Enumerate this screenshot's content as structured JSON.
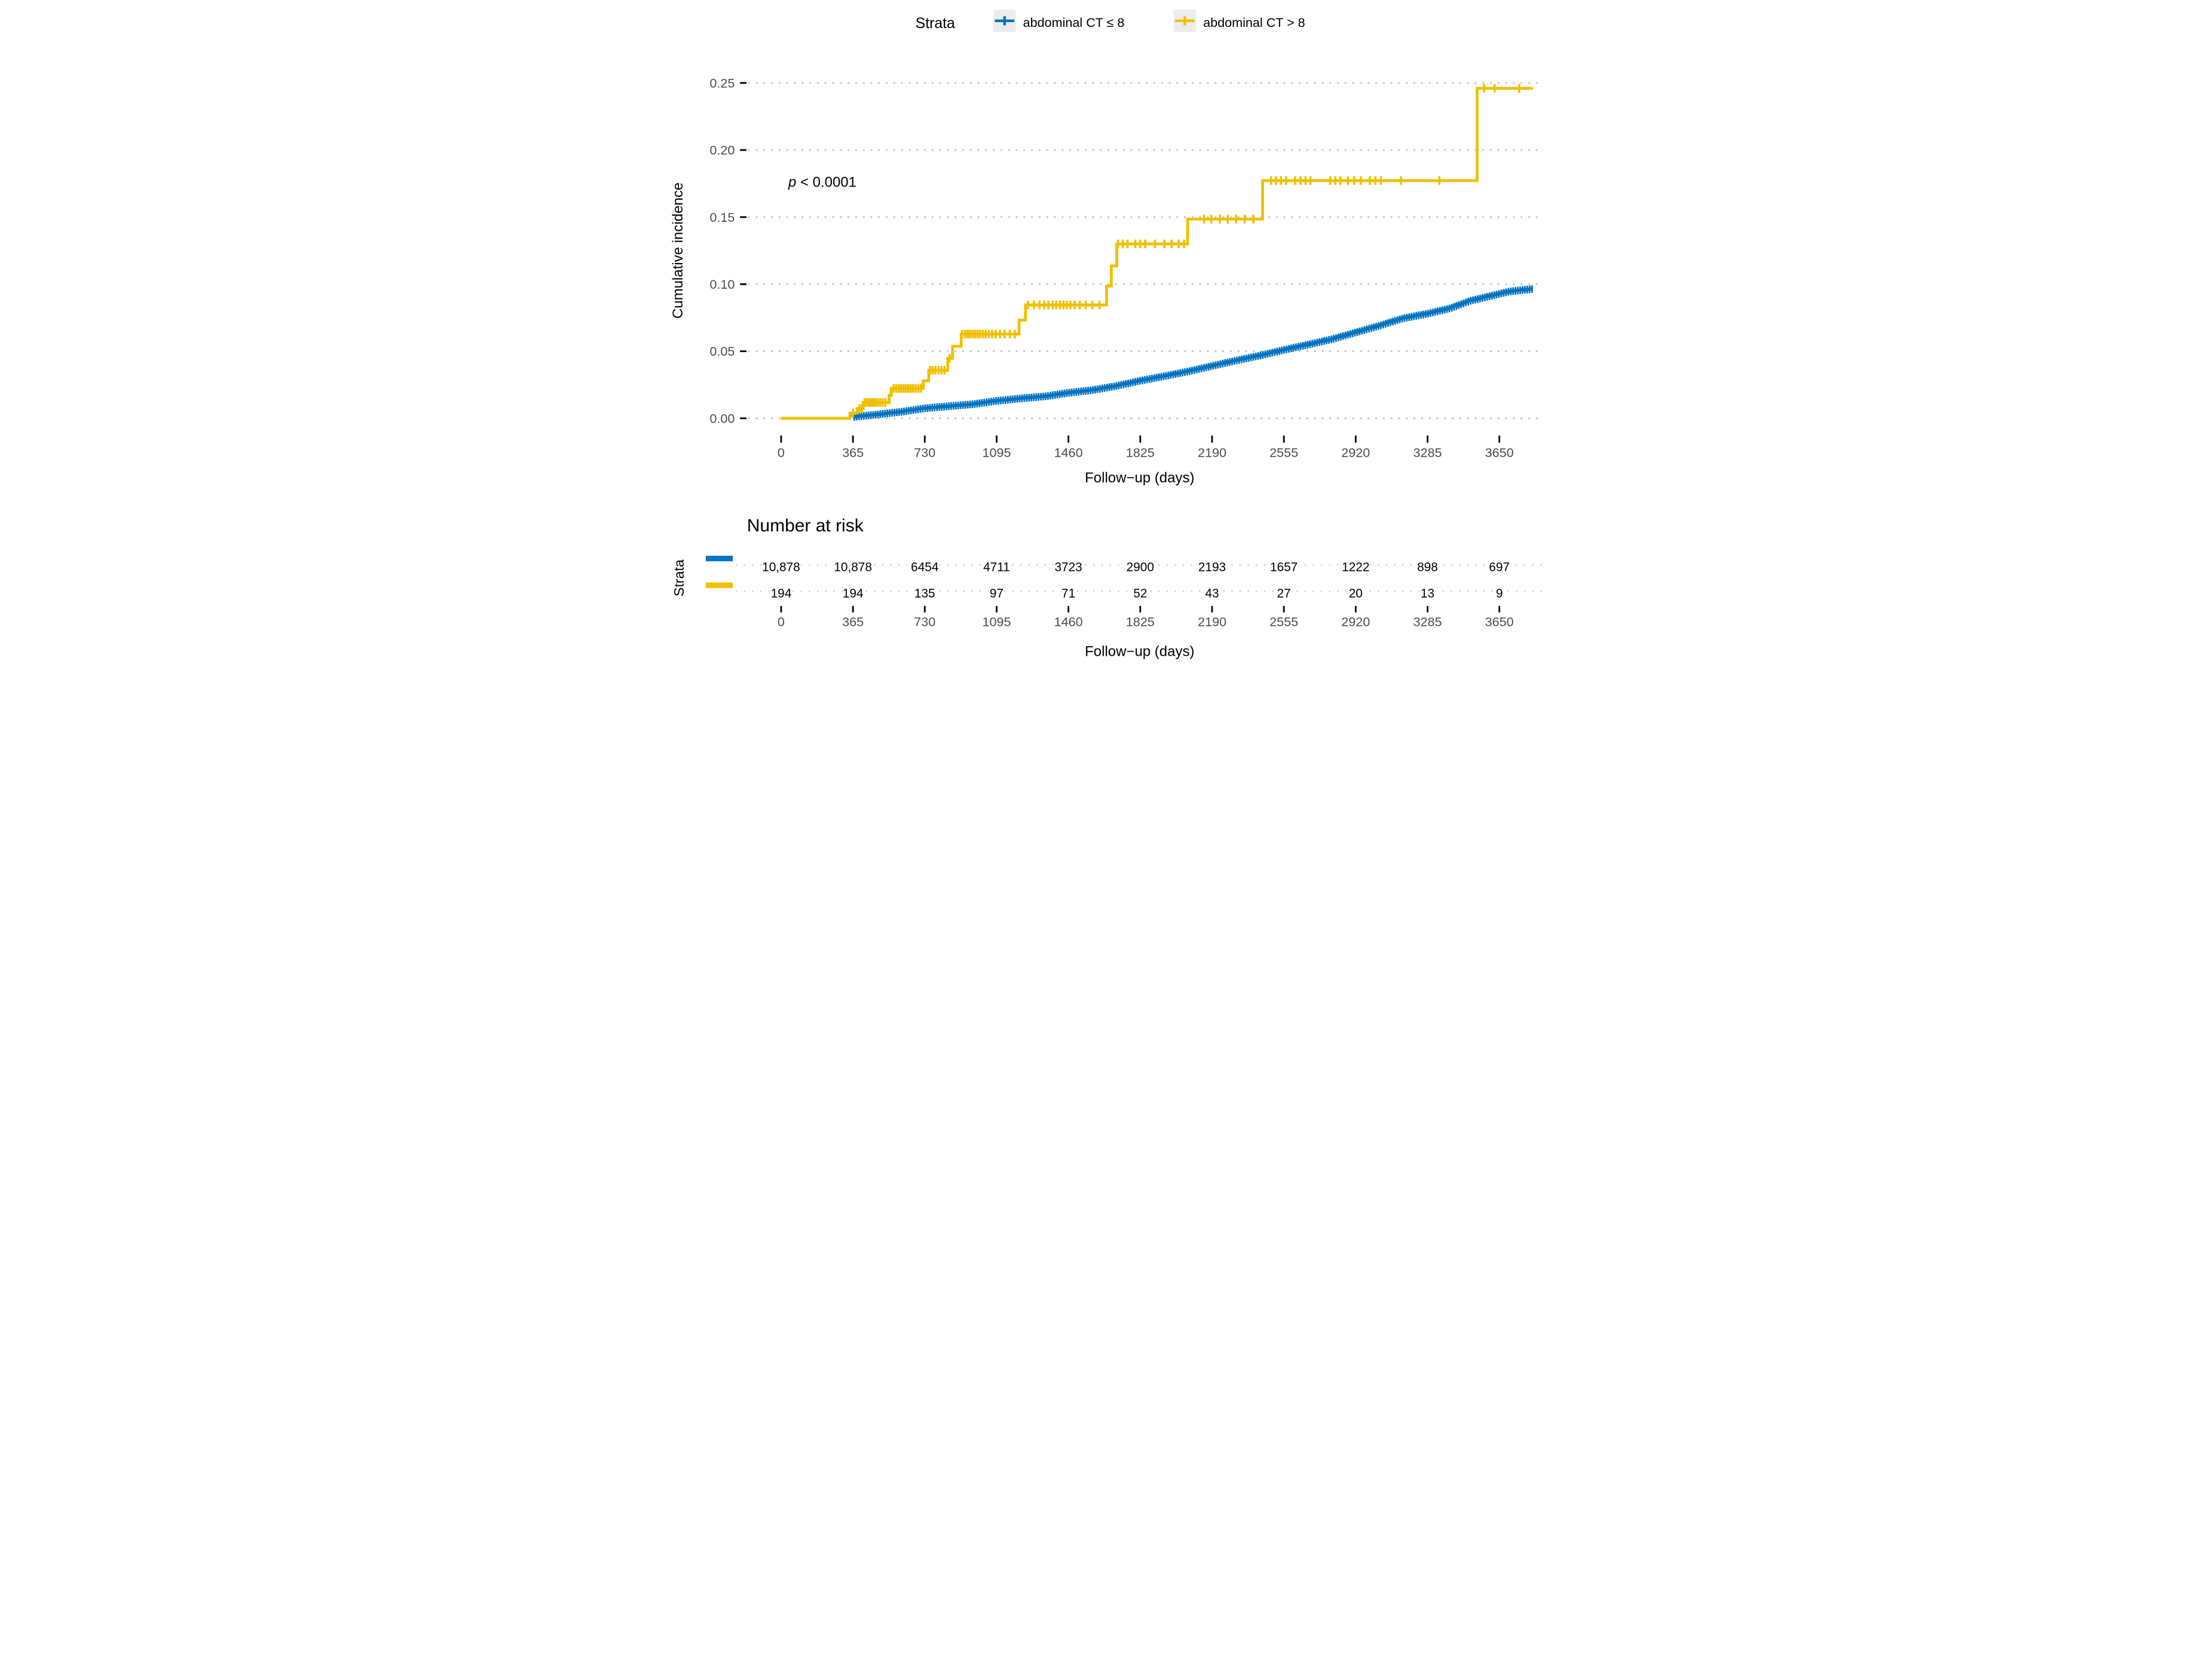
{
  "legend": {
    "title": "Strata",
    "items": [
      {
        "label": "abdominal CT ≤ 8",
        "color": "#0073C2"
      },
      {
        "label": "abdominal CT > 8",
        "color": "#EFC000"
      }
    ],
    "key_bg": "#ECECEC"
  },
  "pvalue": {
    "p": "p",
    "rest": " < 0.0001"
  },
  "chart_data": {
    "type": "line",
    "subtype": "cumulative-incidence-step",
    "title": "",
    "xlabel": "Follow−up (days)",
    "ylabel": "Cumulative incidence",
    "xlim": [
      0,
      3821
    ],
    "ylim": [
      0,
      0.25
    ],
    "x_ticks": [
      0,
      365,
      730,
      1095,
      1460,
      1825,
      2190,
      2555,
      2920,
      3285,
      3650
    ],
    "y_ticks": [
      0.0,
      0.05,
      0.1,
      0.15,
      0.2,
      0.25
    ],
    "y_tick_labels": [
      "0.00",
      "0.05",
      "0.10",
      "0.15",
      "0.20",
      "0.25"
    ],
    "grid": "dotted-horizontal",
    "legend_position": "top",
    "annotation": "p < 0.0001",
    "series": [
      {
        "name": "abdominal CT ≤ 8",
        "color": "#0073C2",
        "style": "dense-censored-step",
        "points": [
          [
            365,
            0.001
          ],
          [
            500,
            0.003
          ],
          [
            620,
            0.005
          ],
          [
            730,
            0.0075
          ],
          [
            850,
            0.009
          ],
          [
            975,
            0.0105
          ],
          [
            1095,
            0.013
          ],
          [
            1230,
            0.015
          ],
          [
            1350,
            0.0165
          ],
          [
            1460,
            0.019
          ],
          [
            1580,
            0.021
          ],
          [
            1700,
            0.024
          ],
          [
            1825,
            0.028
          ],
          [
            1950,
            0.0315
          ],
          [
            2070,
            0.035
          ],
          [
            2190,
            0.039
          ],
          [
            2310,
            0.043
          ],
          [
            2440,
            0.047
          ],
          [
            2555,
            0.051
          ],
          [
            2680,
            0.055
          ],
          [
            2800,
            0.059
          ],
          [
            2920,
            0.064
          ],
          [
            3040,
            0.069
          ],
          [
            3160,
            0.0745
          ],
          [
            3285,
            0.078
          ],
          [
            3400,
            0.082
          ],
          [
            3500,
            0.0875
          ],
          [
            3600,
            0.091
          ],
          [
            3700,
            0.0945
          ],
          [
            3821,
            0.0965
          ]
        ],
        "censor_every_days": 12,
        "end_day": 3821
      },
      {
        "name": "abdominal CT > 8",
        "color": "#EFC000",
        "style": "step-with-censors",
        "steps": [
          [
            0,
            0
          ],
          [
            350,
            0.004
          ],
          [
            387,
            0.0072
          ],
          [
            417,
            0.0118
          ],
          [
            549,
            0.0172
          ],
          [
            560,
            0.0223
          ],
          [
            722,
            0.028
          ],
          [
            750,
            0.0358
          ],
          [
            847,
            0.0447
          ],
          [
            871,
            0.0537
          ],
          [
            915,
            0.0628
          ],
          [
            1209,
            0.0732
          ],
          [
            1242,
            0.0845
          ],
          [
            1654,
            0.0986
          ],
          [
            1678,
            0.1136
          ],
          [
            1706,
            0.13
          ],
          [
            2066,
            0.1485
          ],
          [
            2447,
            0.1772
          ],
          [
            3537,
            0.246
          ]
        ],
        "censors": [
          365,
          398,
          410,
          424,
          436,
          448,
          458,
          468,
          478,
          490,
          503,
          516,
          530,
          572,
          585,
          598,
          610,
          622,
          634,
          646,
          658,
          670,
          683,
          697,
          710,
          757,
          770,
          784,
          800,
          815,
          830,
          856,
          920,
          935,
          948,
          960,
          973,
          986,
          999,
          1012,
          1026,
          1040,
          1055,
          1072,
          1090,
          1112,
          1136,
          1162,
          1188,
          1254,
          1285,
          1313,
          1338,
          1358,
          1380,
          1398,
          1417,
          1435,
          1452,
          1470,
          1492,
          1518,
          1548,
          1582,
          1618,
          1712,
          1736,
          1760,
          1800,
          1824,
          1850,
          1900,
          1948,
          1984,
          2020,
          2048,
          2150,
          2186,
          2230,
          2270,
          2312,
          2356,
          2400,
          2490,
          2515,
          2540,
          2566,
          2612,
          2640,
          2665,
          2690,
          2790,
          2816,
          2842,
          2880,
          2912,
          2946,
          2992,
          3020,
          3048,
          3150,
          3345,
          3573,
          3626,
          3751
        ],
        "end_day": 3821
      }
    ]
  },
  "risk_table": {
    "title": "Number at risk",
    "ylabel": "Strata",
    "xlabel": "Follow−up (days)",
    "columns": [
      0,
      365,
      730,
      1095,
      1460,
      1825,
      2190,
      2555,
      2920,
      3285,
      3650
    ],
    "rows": [
      {
        "name": "abdominal CT ≤ 8",
        "color": "#0073C2",
        "values": [
          "10,878",
          "10,878",
          "6454",
          "4711",
          "3723",
          "2900",
          "2193",
          "1657",
          "1222",
          "898",
          "697"
        ]
      },
      {
        "name": "abdominal CT > 8",
        "color": "#EFC000",
        "values": [
          "194",
          "194",
          "135",
          "97",
          "71",
          "52",
          "43",
          "27",
          "20",
          "13",
          "9"
        ]
      }
    ]
  },
  "colors": {
    "grid": "#c2c2c2",
    "leader": "#cccccc",
    "axis_text": "#4d4d4d",
    "tick": "#000000"
  }
}
